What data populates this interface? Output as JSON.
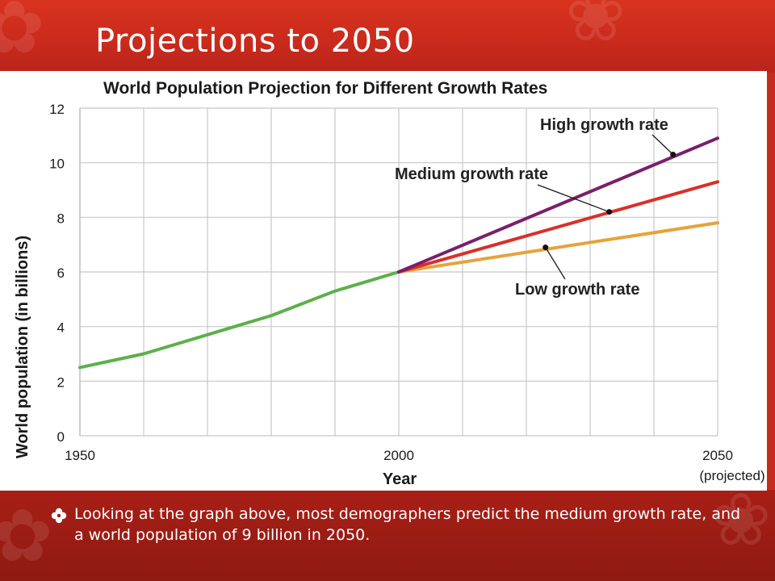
{
  "slide": {
    "title": "Projections to 2050",
    "caption": "Looking at the graph above, most demographers predict the medium growth rate, and a world population of 9 billion in 2050.",
    "bullet_icon": "four-petal-flower-icon"
  },
  "colors": {
    "background": "#c62b1f",
    "caption_band": "#9c1d14",
    "historical": "#5cb04a",
    "high": "#7a1f6b",
    "medium": "#d9302a",
    "low": "#e6a33a"
  },
  "chart_data": {
    "type": "line",
    "title": "World Population Projection for Different Growth Rates",
    "xlabel": "Year",
    "ylabel": "World population (in billions)",
    "xlim": [
      1950,
      2050
    ],
    "ylim": [
      0,
      12
    ],
    "x_ticks": [
      {
        "value": 1950,
        "label": "1950"
      },
      {
        "value": 2000,
        "label": "2000"
      },
      {
        "value": 2050,
        "label": "2050"
      }
    ],
    "x_tick_note": "(projected)",
    "y_ticks": [
      0,
      2,
      4,
      6,
      8,
      10,
      12
    ],
    "x_grid": [
      1960,
      1970,
      1980,
      1990,
      2000,
      2010,
      2020,
      2030,
      2040,
      2050
    ],
    "grid": true,
    "series": [
      {
        "id": "historical",
        "color": "#5cb04a",
        "x": [
          1950,
          1960,
          1970,
          1980,
          1990,
          2000
        ],
        "y": [
          2.5,
          3.0,
          3.7,
          4.4,
          5.3,
          6.0
        ]
      },
      {
        "id": "high",
        "name": "High growth rate",
        "color": "#7a1f6b",
        "x": [
          2000,
          2050
        ],
        "y": [
          6.0,
          10.9
        ],
        "marker": {
          "x": 2043,
          "y": 10.3
        }
      },
      {
        "id": "medium",
        "name": "Medium growth rate",
        "color": "#d9302a",
        "x": [
          2000,
          2050
        ],
        "y": [
          6.0,
          9.3
        ],
        "marker": {
          "x": 2033,
          "y": 8.2
        }
      },
      {
        "id": "low",
        "name": "Low growth rate",
        "color": "#e6a33a",
        "x": [
          2000,
          2050
        ],
        "y": [
          6.0,
          7.8
        ],
        "marker": {
          "x": 2023,
          "y": 6.9
        }
      }
    ]
  }
}
